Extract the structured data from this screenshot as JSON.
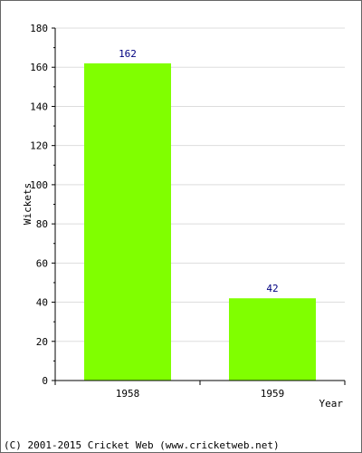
{
  "chart_data": {
    "type": "bar",
    "categories": [
      "1958",
      "1959"
    ],
    "values": [
      162,
      42
    ],
    "data_labels": [
      "162",
      "42"
    ],
    "title": "",
    "xlabel": "Year",
    "ylabel": "Wickets",
    "ylim": [
      0,
      180
    ],
    "yticks": [
      0,
      20,
      40,
      60,
      80,
      100,
      120,
      140,
      160,
      180
    ],
    "grid": true,
    "legend": "none",
    "bar_color": "#80ff00"
  },
  "footer": {
    "copyright": "(C) 2001-2015 Cricket Web (www.cricketweb.net)"
  }
}
